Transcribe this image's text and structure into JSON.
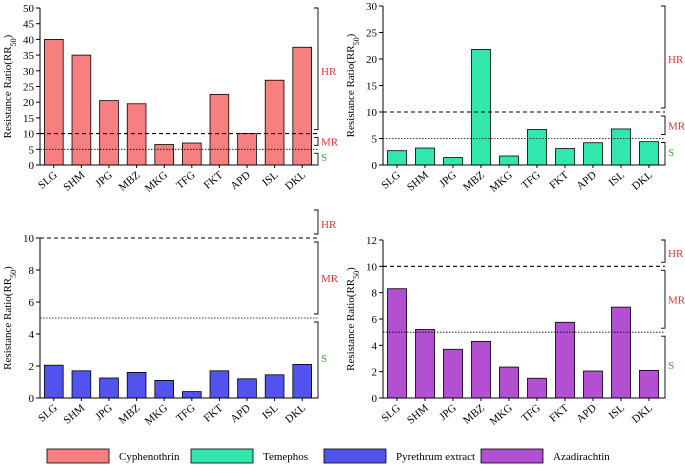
{
  "figure": {
    "legend": [
      {
        "label": "Cyphenothrin",
        "color": "#f87f7f"
      },
      {
        "label": "Temephos",
        "color": "#33e6ae"
      },
      {
        "label": "Pyrethrum extract",
        "color": "#5252ef"
      },
      {
        "label": "Azadirachtin",
        "color": "#b350d1"
      }
    ],
    "band_labels": {
      "hr": "HR",
      "mr": "MR",
      "s": "S"
    },
    "band_colors": {
      "hr": "#e8342f",
      "mr": "#e8342f",
      "s": "#3fa535"
    }
  },
  "chart_data": [
    {
      "type": "bar",
      "ylabel_main": "Resistance Ratio(RR",
      "ylabel_sub": "50",
      "ylabel_end": ")",
      "categories": [
        "SLG",
        "SHM",
        "JPG",
        "MBZ",
        "MKG",
        "TFG",
        "FKT",
        "APD",
        "ISL",
        "DKL"
      ],
      "values": [
        40,
        35,
        20.5,
        19.5,
        6.5,
        7,
        22.5,
        10,
        27,
        37.5
      ],
      "ylim": [
        0,
        50
      ],
      "yticks": [
        "0",
        "5",
        "10",
        "15",
        "20",
        "25",
        "30",
        "35",
        "40",
        "45",
        "50"
      ],
      "threshold_hr": 10,
      "threshold_mr": 5,
      "color": "#f87f7f"
    },
    {
      "type": "bar",
      "ylabel_main": "Resistance Ratio(RR",
      "ylabel_sub": "50",
      "ylabel_end": ")",
      "categories": [
        "SLG",
        "SHM",
        "JPG",
        "MBZ",
        "MKG",
        "TFG",
        "FKT",
        "APD",
        "ISL",
        "DKL"
      ],
      "values": [
        2.7,
        3.2,
        1.4,
        21.8,
        1.7,
        6.7,
        3.1,
        4.2,
        6.8,
        4.4
      ],
      "ylim": [
        0,
        30
      ],
      "yticks": [
        "0",
        "5",
        "10",
        "15",
        "20",
        "25",
        "30"
      ],
      "threshold_hr": 10,
      "threshold_mr": 5,
      "color": "#33e6ae"
    },
    {
      "type": "bar",
      "ylabel_main": "Resistance Ratio(RR",
      "ylabel_sub": "50",
      "ylabel_end": ")",
      "categories": [
        "SLG",
        "SHM",
        "JPG",
        "MBZ",
        "MKG",
        "TFG",
        "FKT",
        "APD",
        "ISL",
        "DKL"
      ],
      "values": [
        2.05,
        1.7,
        1.25,
        1.6,
        1.1,
        0.4,
        1.7,
        1.2,
        1.45,
        2.1
      ],
      "ylim": [
        0,
        10
      ],
      "yticks": [
        "0",
        "2",
        "4",
        "6",
        "8",
        "10"
      ],
      "threshold_hr": 10,
      "threshold_mr": 5,
      "color": "#5252ef"
    },
    {
      "type": "bar",
      "ylabel_main": "Resistance Ratio(RR",
      "ylabel_sub": "50",
      "ylabel_end": ")",
      "categories": [
        "SLG",
        "SHM",
        "JPG",
        "MBZ",
        "MKG",
        "TFG",
        "FKT",
        "APD",
        "ISL",
        "DKL"
      ],
      "values": [
        8.3,
        5.2,
        3.7,
        4.3,
        2.35,
        1.5,
        5.75,
        2.05,
        6.9,
        2.1
      ],
      "ylim": [
        0,
        12
      ],
      "yticks": [
        "0",
        "2",
        "4",
        "6",
        "8",
        "10",
        "12"
      ],
      "threshold_hr": 10,
      "threshold_mr": 5,
      "color": "#b350d1"
    }
  ]
}
